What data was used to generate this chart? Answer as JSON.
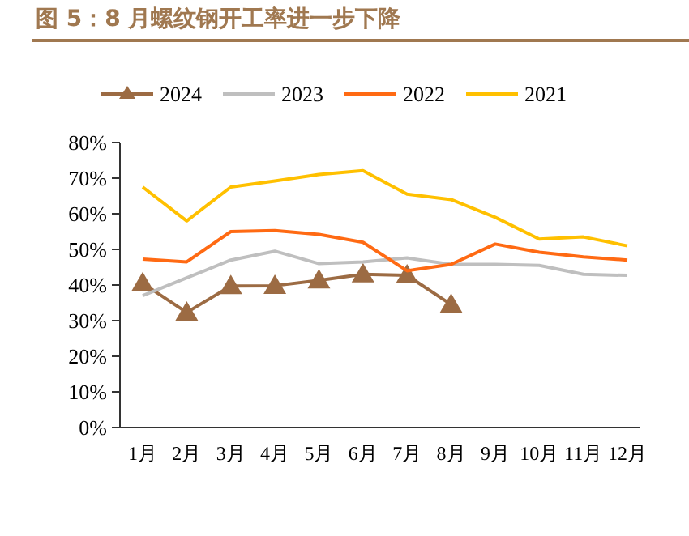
{
  "chart_data": {
    "type": "line",
    "title": "图 5：8 月螺纹钢开工率进一步下降",
    "categories": [
      "1月",
      "2月",
      "3月",
      "4月",
      "5月",
      "6月",
      "7月",
      "8月",
      "9月",
      "10月",
      "11月",
      "12月"
    ],
    "series": [
      {
        "name": "2024",
        "color": "#9c6b43",
        "marker": "triangle",
        "values": [
          40.5,
          32.3,
          39.7,
          39.8,
          41.3,
          43,
          42.7,
          34.5,
          null,
          null,
          null,
          null
        ]
      },
      {
        "name": "2023",
        "color": "#bfbfbf",
        "marker": "none",
        "values": [
          37,
          42,
          47,
          49.5,
          46,
          46.5,
          47.6,
          45.8,
          45.8,
          45.5,
          43,
          42.7
        ]
      },
      {
        "name": "2022",
        "color": "#ff6a13",
        "marker": "none",
        "values": [
          47.3,
          46.5,
          55,
          55.3,
          54.2,
          52,
          44,
          45.8,
          51.5,
          49.2,
          47.9,
          47
        ]
      },
      {
        "name": "2021",
        "color": "#ffc000",
        "marker": "none",
        "values": [
          67.5,
          58,
          67.5,
          69.2,
          71,
          72.1,
          65.5,
          64,
          59,
          52.9,
          53.5,
          51
        ]
      }
    ],
    "ylim": [
      0,
      80
    ],
    "yticks": [
      {
        "value": 0,
        "label": "0%"
      },
      {
        "value": 10,
        "label": "10%"
      },
      {
        "value": 20,
        "label": "20%"
      },
      {
        "value": 30,
        "label": "30%"
      },
      {
        "value": 40,
        "label": "40%"
      },
      {
        "value": 50,
        "label": "50%"
      },
      {
        "value": 60,
        "label": "60%"
      },
      {
        "value": 70,
        "label": "70%"
      },
      {
        "value": 80,
        "label": "80%"
      }
    ],
    "legend": "top",
    "grid": false
  }
}
